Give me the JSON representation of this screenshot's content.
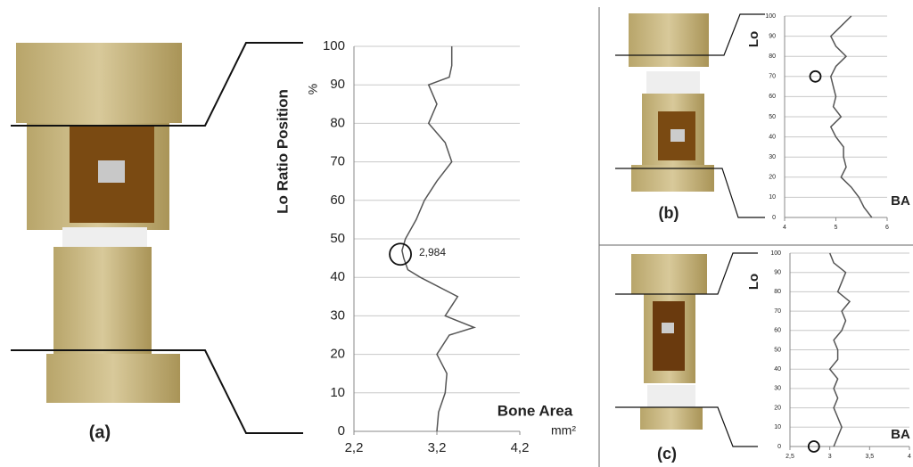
{
  "chart_data": [
    {
      "type": "line",
      "panel_label": "(a)",
      "y_label": "Lo Ratio Position",
      "y_unit": "%",
      "x_label": "Bone Area",
      "x_unit": "mm²",
      "annotation": "2,984",
      "values": [
        0,
        5,
        10,
        15,
        20,
        25,
        27,
        30,
        35,
        40,
        42,
        45,
        47,
        50,
        55,
        60,
        65,
        70,
        75,
        80,
        85,
        90,
        92,
        95,
        100
      ],
      "x": [
        3.2,
        3.22,
        3.3,
        3.32,
        3.2,
        3.35,
        3.65,
        3.3,
        3.45,
        3.0,
        2.85,
        2.8,
        2.78,
        2.82,
        2.95,
        3.05,
        3.2,
        3.38,
        3.3,
        3.1,
        3.2,
        3.1,
        3.35,
        3.38,
        3.38
      ],
      "highlight": {
        "x": 2.76,
        "y": 46
      },
      "color": "#555555",
      "xlim": [
        2.2,
        4.2
      ],
      "xticks": [
        {
          "value": 2.2,
          "label": "2,2"
        },
        {
          "value": 3.2,
          "label": "3,2"
        },
        {
          "value": 4.2,
          "label": "4,2"
        }
      ],
      "ylim": [
        0,
        100
      ],
      "yticks": [
        0,
        10,
        20,
        30,
        40,
        50,
        60,
        70,
        80,
        90,
        100
      ],
      "grid": true
    },
    {
      "type": "line",
      "panel_label": "(b)",
      "y_label": "Lo",
      "x_label": "BA",
      "values": [
        0,
        5,
        10,
        15,
        20,
        25,
        30,
        35,
        40,
        45,
        50,
        55,
        60,
        65,
        70,
        75,
        80,
        85,
        90,
        95,
        100
      ],
      "x": [
        5.7,
        5.55,
        5.45,
        5.3,
        5.1,
        5.2,
        5.15,
        5.15,
        5.0,
        4.9,
        5.1,
        4.95,
        5.0,
        4.95,
        4.9,
        5.0,
        5.2,
        5.0,
        4.9,
        5.1,
        5.3
      ],
      "highlight": {
        "x": 4.6,
        "y": 70
      },
      "color": "#555555",
      "xlim": [
        4,
        6
      ],
      "xticks": [
        4,
        5,
        6
      ],
      "ylim": [
        0,
        100
      ],
      "yticks": [
        0,
        10,
        20,
        30,
        40,
        50,
        60,
        70,
        80,
        90,
        100
      ],
      "grid": true
    },
    {
      "type": "line",
      "panel_label": "(c)",
      "y_label": "Lo",
      "x_label": "BA",
      "values": [
        0,
        5,
        10,
        15,
        20,
        25,
        30,
        35,
        40,
        45,
        50,
        55,
        60,
        65,
        70,
        75,
        80,
        85,
        90,
        95,
        100
      ],
      "x": [
        3.05,
        3.1,
        3.15,
        3.1,
        3.05,
        3.1,
        3.05,
        3.1,
        3.0,
        3.1,
        3.1,
        3.05,
        3.15,
        3.2,
        3.15,
        3.25,
        3.1,
        3.15,
        3.2,
        3.05,
        3.0
      ],
      "highlight": {
        "x": 2.8,
        "y": 0
      },
      "color": "#555555",
      "xlim": [
        2.5,
        4
      ],
      "xticks": [
        {
          "value": 2.5,
          "label": "2,5"
        },
        3,
        {
          "value": 3.5,
          "label": "3,5"
        },
        4
      ],
      "ylim": [
        0,
        100
      ],
      "yticks": [
        0,
        10,
        20,
        30,
        40,
        50,
        60,
        70,
        80,
        90,
        100
      ],
      "grid": true
    }
  ]
}
